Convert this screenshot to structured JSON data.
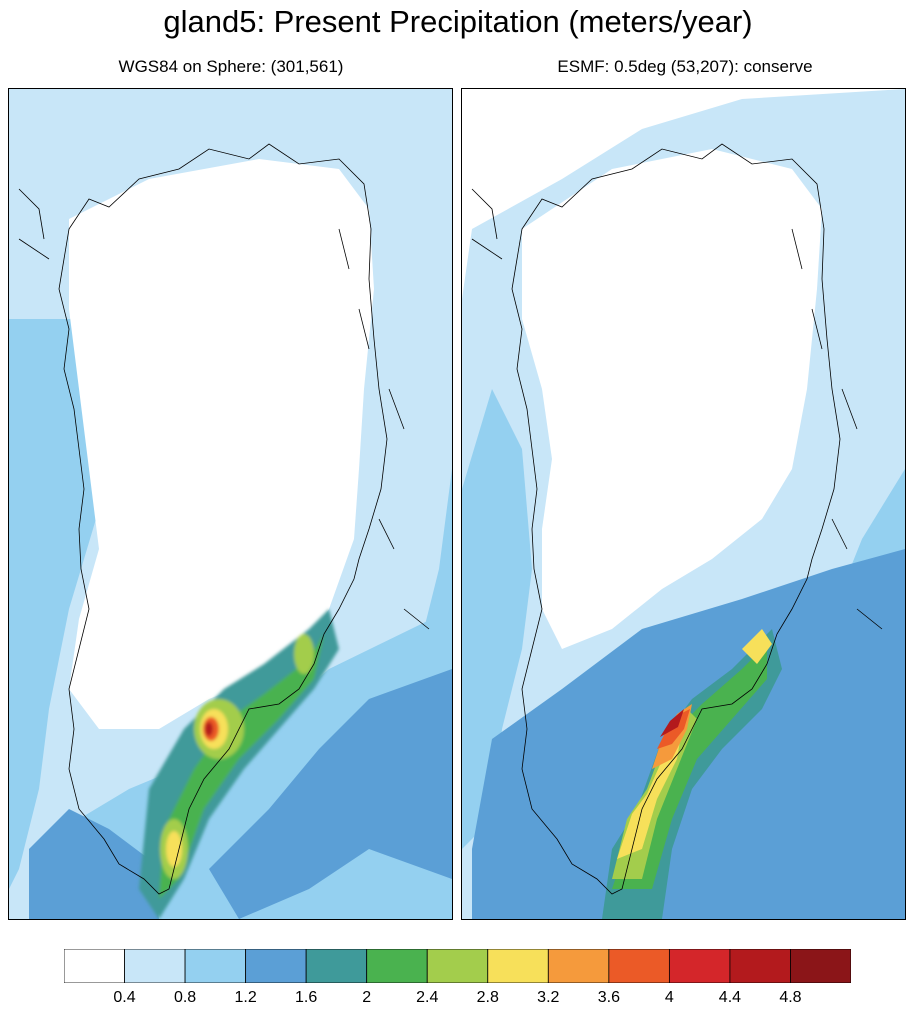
{
  "title": "gland5: Present Precipitation (meters/year)",
  "panels": [
    {
      "id": "left",
      "subtitle": "WGS84 on Sphere: (301,561)"
    },
    {
      "id": "right",
      "subtitle": "ESMF: 0.5deg (53,207): conserve"
    }
  ],
  "colorbar": {
    "colors": [
      "#ffffff",
      "#c8e6f8",
      "#94d0f0",
      "#5b9fd6",
      "#3f9a9a",
      "#4ab24f",
      "#a3cd4c",
      "#f7e05a",
      "#f59a3c",
      "#eb5a27",
      "#d4262a",
      "#b31a1d",
      "#8b1518"
    ],
    "labels": [
      "0.4",
      "0.8",
      "1.2",
      "1.6",
      "2",
      "2.4",
      "2.8",
      "3.2",
      "3.6",
      "4",
      "4.4",
      "4.8"
    ]
  }
}
